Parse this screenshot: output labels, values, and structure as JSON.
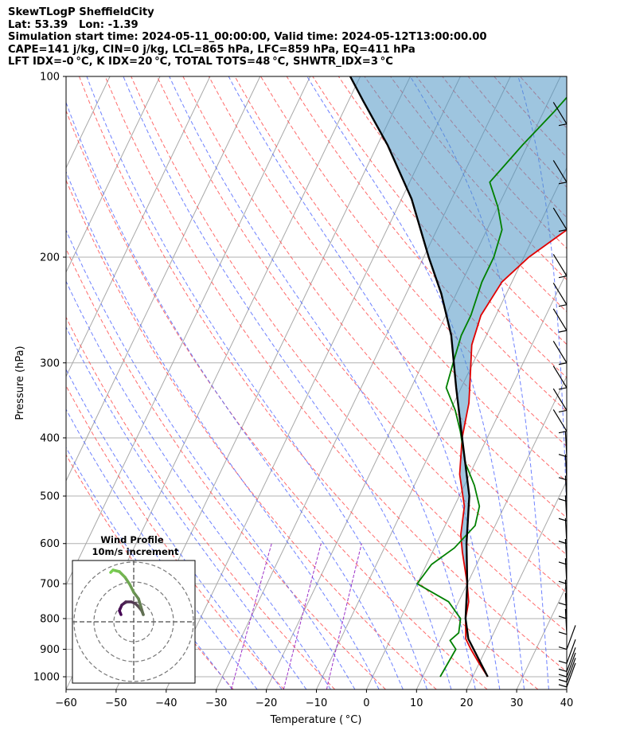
{
  "header": {
    "line1": "SkewTLogP SheffieldCity",
    "line2": "Lat: 53.39   Lon: -1.39",
    "line3": "Simulation start time: 2024-05-11_00:00:00, Valid time: 2024-05-12T13:00:00.00",
    "line4": "CAPE=141 j/kg, CIN=0 j/kg, LCL=865 hPa, LFC=859 hPa, EQ=411 hPa",
    "line5": "LFT IDX=-0 °C, K IDX=20 °C, TOTAL TOTS=48 °C, SHWTR_IDX=3 °C"
  },
  "chart_data": {
    "type": "line",
    "xlabel": "Temperature ( °C)",
    "ylabel": "Pressure (hPa)",
    "xlim": [
      -60,
      40
    ],
    "ylim_hpa": [
      1050,
      100
    ],
    "y_scale": "log",
    "x_ticks": [
      "−60",
      "−50",
      "−40",
      "−30",
      "−20",
      "−10",
      "0",
      "10",
      "20",
      "30",
      "40"
    ],
    "y_ticks": [
      "100",
      "200",
      "300",
      "400",
      "500",
      "600",
      "700",
      "800",
      "900",
      "1000"
    ],
    "grid": true,
    "series": [
      {
        "role": "temperature",
        "color": "#e00000",
        "points": [
          [
            23,
            1000
          ],
          [
            20,
            950
          ],
          [
            17,
            900
          ],
          [
            15,
            865
          ],
          [
            13,
            800
          ],
          [
            12,
            750
          ],
          [
            10,
            700
          ],
          [
            6,
            620
          ],
          [
            4,
            580
          ],
          [
            2,
            520
          ],
          [
            -2,
            460
          ],
          [
            -5,
            400
          ],
          [
            -7,
            350
          ],
          [
            -9,
            320
          ],
          [
            -12,
            280
          ],
          [
            -13,
            250
          ],
          [
            -12,
            220
          ],
          [
            -9,
            200
          ],
          [
            -4,
            180
          ],
          [
            0,
            160
          ],
          [
            4,
            145
          ],
          [
            7,
            130
          ],
          [
            9,
            115
          ],
          [
            11,
            100
          ]
        ]
      },
      {
        "role": "dewpoint",
        "color": "#008000",
        "points": [
          [
            13.5,
            1000
          ],
          [
            14,
            900
          ],
          [
            12,
            870
          ],
          [
            13,
            845
          ],
          [
            12,
            800
          ],
          [
            8,
            750
          ],
          [
            0,
            700
          ],
          [
            1,
            650
          ],
          [
            4,
            610
          ],
          [
            6,
            560
          ],
          [
            5,
            520
          ],
          [
            2,
            480
          ],
          [
            -2,
            440
          ],
          [
            -6,
            390
          ],
          [
            -9,
            360
          ],
          [
            -13,
            330
          ],
          [
            -14,
            300
          ],
          [
            -15,
            270
          ],
          [
            -15,
            250
          ],
          [
            -16,
            220
          ],
          [
            -16,
            200
          ],
          [
            -17,
            180
          ],
          [
            -20,
            165
          ],
          [
            -24,
            150
          ],
          [
            -21,
            130
          ],
          [
            -18,
            115
          ],
          [
            -15,
            100
          ]
        ]
      },
      {
        "role": "parcel",
        "color": "#000000",
        "points": [
          [
            23,
            1000
          ],
          [
            15.5,
            865
          ],
          [
            13,
            800
          ],
          [
            10,
            700
          ],
          [
            6,
            600
          ],
          [
            2,
            500
          ],
          [
            -5,
            400
          ],
          [
            -11,
            330
          ],
          [
            -17,
            270
          ],
          [
            -23,
            230
          ],
          [
            -29,
            200
          ],
          [
            -38,
            160
          ],
          [
            -48,
            130
          ],
          [
            -57,
            110
          ],
          [
            -62,
            100
          ]
        ]
      }
    ],
    "cape_fill_color": "#4f95c4",
    "inset": {
      "title": "Wind Profile",
      "subtitle": "10m/s increment"
    }
  }
}
